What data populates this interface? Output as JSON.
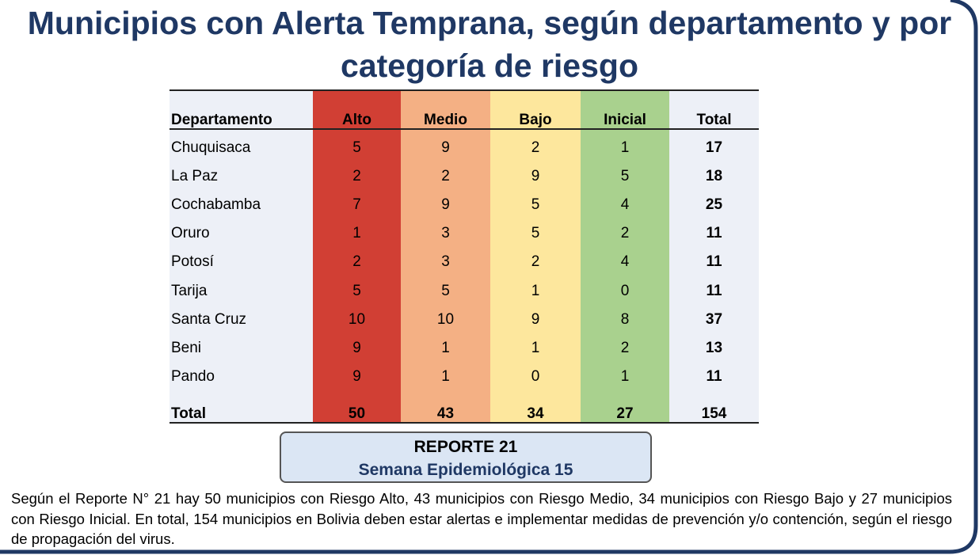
{
  "header": {
    "title": "Municipios con Alerta Temprana, según departamento y por categoría de riesgo"
  },
  "table": {
    "columns": [
      "Departamento",
      "Alto",
      "Medio",
      "Bajo",
      "Inicial",
      "Total"
    ],
    "rows": [
      [
        "Chuquisaca",
        5,
        9,
        2,
        1,
        17
      ],
      [
        "La Paz",
        2,
        2,
        9,
        5,
        18
      ],
      [
        "Cochabamba",
        7,
        9,
        5,
        4,
        25
      ],
      [
        "Oruro",
        1,
        3,
        5,
        2,
        11
      ],
      [
        "Potosí",
        2,
        3,
        2,
        4,
        11
      ],
      [
        "Tarija",
        5,
        5,
        1,
        0,
        11
      ],
      [
        "Santa Cruz",
        10,
        10,
        9,
        8,
        37
      ],
      [
        "Beni",
        9,
        1,
        1,
        2,
        13
      ],
      [
        "Pando",
        9,
        1,
        0,
        1,
        11
      ]
    ],
    "total": [
      "Total",
      50,
      43,
      34,
      27,
      154
    ]
  },
  "report": {
    "title": "REPORTE 21",
    "subtitle": "Semana Epidemiológica 15"
  },
  "note": "Según el Reporte N° 21 hay 50 municipios con Riesgo Alto, 43 municipios con Riesgo Medio, 34 municipios con Riesgo Bajo y 27 municipios con Riesgo Inicial. En total, 154 municipios en Bolivia deben estar alertas e implementar medidas de prevención y/o contención, según el riesgo de propagación del virus."
}
